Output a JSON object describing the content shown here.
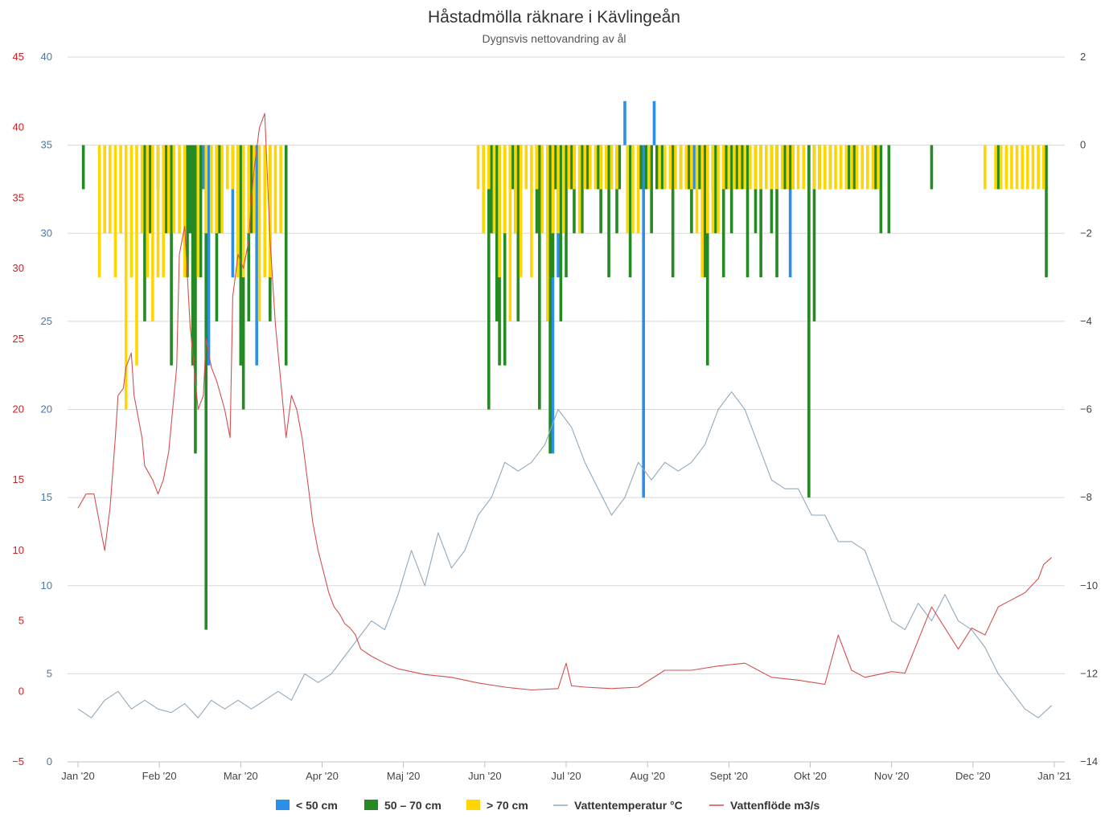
{
  "chart_data": {
    "type": "bar",
    "title": "Håstadmölla räknare i Kävlingeån",
    "subtitle": "Dygnsvis nettovandring av ål",
    "x_axis": {
      "type": "datetime",
      "range": [
        "2020-01-01",
        "2021-01-01"
      ],
      "tick_labels": [
        "Jan '20",
        "Feb '20",
        "Mar '20",
        "Apr '20",
        "Maj '20",
        "Jun '20",
        "Jul '20",
        "Aug '20",
        "Sept '20",
        "Okt '20",
        "Nov '20",
        "Dec '20",
        "Jan '21"
      ]
    },
    "y_axes": [
      {
        "id": "flow",
        "side": "left-outer",
        "color": "#cc1f1f",
        "range": [
          -5,
          45
        ],
        "tick_labels": [
          "−5",
          "0",
          "5",
          "10",
          "15",
          "20",
          "25",
          "30",
          "35",
          "40",
          "45"
        ]
      },
      {
        "id": "temp",
        "side": "left-inner",
        "color": "#4b77a8",
        "range": [
          0,
          40
        ],
        "tick_labels": [
          "0",
          "5",
          "10",
          "15",
          "20",
          "25",
          "30",
          "35",
          "40"
        ]
      },
      {
        "id": "count",
        "side": "right",
        "color": "#444444",
        "range": [
          -14,
          2
        ],
        "tick_labels": [
          "−14",
          "−12",
          "−10",
          "−8",
          "−6",
          "−4",
          "−2",
          "0",
          "2"
        ]
      }
    ],
    "grid": true,
    "legend_position": "bottom-center",
    "legend": [
      {
        "label": "< 50 cm",
        "color": "#2b8ee8",
        "symbol": "box"
      },
      {
        "label": "50 – 70 cm",
        "color": "#258a24",
        "symbol": "box"
      },
      {
        "label": "> 70 cm",
        "color": "#ffd600",
        "symbol": "box"
      },
      {
        "label": "Vattentemperatur °C",
        "color": "#8fa9bd",
        "symbol": "line"
      },
      {
        "label": "Vattenflöde m3/s",
        "color": "#d45050",
        "symbol": "line"
      }
    ],
    "bar_series": [
      {
        "name": "< 50 cm",
        "color": "#2b8ee8",
        "axis": "count",
        "days": [
          30,
          47,
          49,
          58,
          67,
          178,
          180,
          205,
          212,
          216,
          231,
          267,
          274
        ],
        "values": [
          -1,
          -1,
          -5,
          -3,
          -5,
          -7,
          -3,
          1,
          -8,
          1,
          -1,
          -3,
          -4
        ]
      },
      {
        "name": "50 – 70 cm",
        "color": "#258a24",
        "axis": "count",
        "days": [
          2,
          25,
          27,
          33,
          35,
          41,
          42,
          43,
          44,
          46,
          48,
          52,
          53,
          60,
          65,
          61,
          62,
          64,
          72,
          78,
          155,
          154,
          156,
          157,
          158,
          160,
          162,
          163,
          164,
          165,
          166,
          172,
          173,
          176,
          177,
          178,
          179,
          181,
          183,
          185,
          186,
          189,
          191,
          195,
          196,
          199,
          200,
          202,
          203,
          207,
          211,
          213,
          215,
          217,
          219,
          223,
          226,
          229,
          230,
          233,
          235,
          236,
          238,
          239,
          242,
          243,
          245,
          247,
          248,
          249,
          251,
          254,
          256,
          260,
          262,
          265,
          267,
          268,
          274,
          276,
          278,
          280,
          282,
          289,
          291,
          299,
          301,
          304,
          320,
          345,
          363
        ],
        "values": [
          -1,
          -4,
          -2,
          -2,
          -5,
          -3,
          -2,
          -5,
          -7,
          -3,
          -11,
          -4,
          -2,
          -3,
          -2,
          -5,
          -6,
          -4,
          -4,
          -5,
          -2,
          -6,
          -2,
          -4,
          -5,
          -5,
          -1,
          -1,
          -2,
          -4,
          -1,
          -2,
          -6,
          -4,
          -7,
          -3,
          -1,
          -4,
          -3,
          -1,
          -2,
          -2,
          -1,
          -1,
          -2,
          -3,
          -1,
          -2,
          -1,
          -3,
          -1,
          -1,
          -2,
          -1,
          -1,
          -3,
          -1,
          -1,
          -2,
          -1,
          -3,
          -5,
          -1,
          -2,
          -3,
          -1,
          -2,
          -1,
          -1,
          -1,
          -3,
          -2,
          -3,
          -2,
          -3,
          -1,
          -1,
          -1,
          -8,
          -4,
          -1,
          -1,
          -1,
          -1,
          -1,
          -1,
          -2,
          -2,
          -1,
          -1,
          -3
        ]
      },
      {
        "name": "> 70 cm",
        "color": "#ffd600",
        "axis": "count",
        "days": [
          8,
          10,
          12,
          14,
          16,
          18,
          20,
          22,
          24,
          26,
          28,
          30,
          32,
          34,
          36,
          38,
          40,
          45,
          48,
          50,
          52,
          54,
          56,
          58,
          60,
          62,
          64,
          66,
          68,
          70,
          72,
          74,
          76,
          150,
          152,
          154,
          156,
          158,
          160,
          162,
          164,
          166,
          168,
          170,
          172,
          174,
          176,
          178,
          180,
          182,
          184,
          186,
          188,
          190,
          192,
          194,
          196,
          198,
          200,
          202,
          206,
          208,
          210,
          214,
          218,
          220,
          222,
          224,
          226,
          228,
          230,
          232,
          234,
          236,
          238,
          240,
          242,
          244,
          246,
          248,
          250,
          252,
          254,
          256,
          258,
          260,
          262,
          264,
          266,
          268,
          270,
          272,
          276,
          278,
          280,
          282,
          284,
          286,
          288,
          290,
          292,
          294,
          296,
          298,
          300,
          340,
          344,
          346,
          348,
          350,
          352,
          354,
          356,
          358,
          360,
          362
        ],
        "values": [
          -3,
          -2,
          -2,
          -3,
          -2,
          -6,
          -3,
          -5,
          -2,
          -3,
          -4,
          -3,
          -3,
          -2,
          -2,
          -2,
          -3,
          -3,
          -2,
          -2,
          -2,
          -2,
          -1,
          -1,
          -3,
          -3,
          -2,
          -2,
          -4,
          -3,
          -3,
          -2,
          -2,
          -1,
          -2,
          -1,
          -2,
          -3,
          -2,
          -4,
          -2,
          -3,
          -1,
          -3,
          -1,
          -2,
          -4,
          -2,
          -2,
          -2,
          -1,
          -1,
          -2,
          -1,
          -1,
          -1,
          -1,
          -1,
          -1,
          -1,
          -2,
          -2,
          -2,
          -1,
          -1,
          -1,
          -1,
          -1,
          -1,
          -1,
          -1,
          -2,
          -3,
          -2,
          -2,
          -2,
          -1,
          -1,
          -1,
          -1,
          -1,
          -1,
          -1,
          -1,
          -1,
          -1,
          -1,
          -1,
          -1,
          -1,
          -1,
          -1,
          -1,
          -1,
          -1,
          -1,
          -1,
          -1,
          -1,
          -1,
          -1,
          -1,
          -1,
          -1,
          -1,
          -1,
          -1,
          -1,
          -1,
          -1,
          -1,
          -1,
          -1,
          -1,
          -1,
          -1
        ]
      }
    ],
    "line_series": [
      {
        "name": "Vattentemperatur °C",
        "color": "#8fa9bd",
        "axis": "temp",
        "x_days": [
          0,
          5,
          10,
          15,
          20,
          25,
          30,
          35,
          40,
          45,
          50,
          55,
          60,
          65,
          70,
          75,
          80,
          85,
          90,
          95,
          100,
          105,
          110,
          115,
          120,
          125,
          130,
          135,
          140,
          145,
          150,
          155,
          160,
          165,
          170,
          175,
          180,
          185,
          190,
          195,
          200,
          205,
          210,
          215,
          220,
          225,
          230,
          235,
          240,
          245,
          250,
          255,
          260,
          265,
          270,
          275,
          280,
          285,
          290,
          295,
          300,
          305,
          310,
          315,
          320,
          325,
          330,
          335,
          340,
          345,
          350,
          355,
          360,
          365
        ],
        "values": [
          3,
          2.5,
          3.5,
          4,
          3,
          3.5,
          3,
          2.8,
          3.3,
          2.5,
          3.5,
          3,
          3.5,
          3,
          3.5,
          4,
          3.5,
          5,
          4.5,
          5,
          6,
          7,
          8,
          7.5,
          9.5,
          12,
          10,
          13,
          11,
          12,
          14,
          15,
          17,
          16.5,
          17,
          18,
          20,
          19,
          17,
          15.5,
          14,
          15,
          17,
          16,
          17,
          16.5,
          17,
          18,
          20,
          21,
          20,
          18,
          16,
          15.5,
          15.5,
          14,
          14,
          12.5,
          12.5,
          12,
          10,
          8,
          7.5,
          9,
          8,
          9.5,
          8,
          7.5,
          6.5,
          5,
          4,
          3,
          2.5,
          3.2
        ]
      },
      {
        "name": "Vattenflöde m3/s",
        "color": "#d45050",
        "axis": "flow",
        "x_days": [
          0,
          3,
          6,
          8,
          10,
          12,
          14,
          15,
          17,
          18,
          20,
          21,
          22,
          24,
          25,
          28,
          30,
          32,
          34,
          36,
          37,
          38,
          40,
          42,
          44,
          45,
          47,
          48,
          50,
          52,
          55,
          57,
          58,
          60,
          62,
          64,
          65,
          66,
          68,
          70,
          72,
          74,
          76,
          78,
          80,
          82,
          84,
          86,
          88,
          90,
          92,
          94,
          96,
          98,
          100,
          102,
          104,
          106,
          110,
          115,
          120,
          130,
          140,
          150,
          160,
          170,
          180,
          183,
          185,
          190,
          200,
          210,
          220,
          230,
          240,
          250,
          255,
          260,
          270,
          280,
          285,
          290,
          295,
          300,
          305,
          310,
          320,
          330,
          335,
          340,
          345,
          350,
          355,
          360,
          362,
          365
        ],
        "values": [
          13,
          14,
          14,
          12,
          10,
          13,
          18,
          21,
          21.5,
          23,
          24,
          21,
          20,
          18,
          16,
          15,
          14,
          15,
          17,
          21,
          23,
          31,
          33,
          26,
          22,
          20,
          21,
          25,
          23,
          22,
          20,
          18,
          28,
          31,
          30,
          32,
          35,
          37,
          40,
          41,
          32,
          26,
          22,
          18,
          21,
          20,
          18,
          15,
          12,
          10,
          8.5,
          7,
          6,
          5.5,
          4.8,
          4.5,
          4,
          3,
          2.5,
          2,
          1.6,
          1.2,
          1,
          0.6,
          0.3,
          0.1,
          0.2,
          2,
          0.4,
          0.3,
          0.2,
          0.3,
          1.5,
          1.5,
          1.8,
          2,
          1.5,
          1,
          0.8,
          0.5,
          4,
          1.5,
          1,
          1.2,
          1.4,
          1.3,
          6,
          3,
          4.5,
          4,
          6,
          6.5,
          7,
          8,
          9,
          9.5
        ]
      }
    ]
  }
}
